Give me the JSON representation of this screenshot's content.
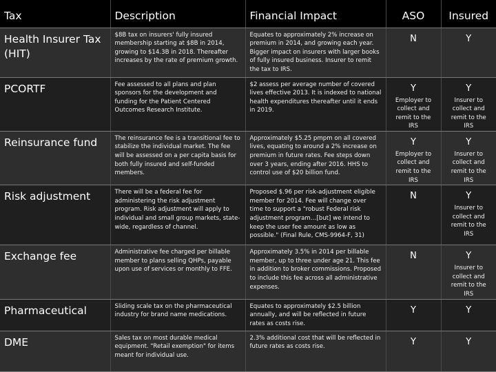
{
  "headers": {
    "tax": "Tax",
    "description": "Description",
    "financial_impact": "Financial Impact",
    "aso": "ASO",
    "insured": "Insured"
  },
  "rows": [
    {
      "tax": "Health Insurer Tax (HIT)",
      "description": "$8B tax on insurers' fully insured membership starting at $8B in 2014, growing to $14.3B in 2018. Thereafter increases by the rate of premium growth.",
      "financial_impact": "Equates to approximately 2% increase on premium in 2014, and growing each year. Bigger impact on insurers with larger books of fully insured business. Insurer to remit the tax to IRS.",
      "aso": "N",
      "aso_note": "",
      "insured": "Y",
      "insured_note": ""
    },
    {
      "tax": "PCORTF",
      "description": "Fee assessed to all plans and plan sponsors for the development and funding for the Patient Centered Outcomes Research Institute.",
      "financial_impact": "$2 assess per average number of covered lives effective 2013. It is indexed to national health expenditures thereafter until it ends in 2019.",
      "aso": "Y",
      "aso_note": "Employer to collect and remit to the IRS",
      "insured": "Y",
      "insured_note": "Insurer to collect and remit to the IRS"
    },
    {
      "tax": "Reinsurance fund",
      "description": "The reinsurance fee is a transitional fee to stabilize the individual market. The fee will be assessed on a per capita basis for both fully insured and self-funded members.",
      "financial_impact": "Approximately $5.25 pmpm on all covered lives, equating to around a 2% increase on premium in future rates. Fee steps down over 3 years, ending after 2016. HHS to control use of $20 billion fund.",
      "aso": "Y",
      "aso_note": "Employer to collect and remit to the IRS",
      "insured": "Y",
      "insured_note": "Insurer to collect and remit to the IRS"
    },
    {
      "tax": "Risk adjustment",
      "description": "There will be a federal fee for administering the risk adjustment program. Risk adjustment will apply to individual and small group markets, state-wide, regardless of channel.",
      "financial_impact": "Proposed $.96 per risk-adjustment eligible member for 2014. Fee will change over time to support a \"robust Federal risk adjustment program…[but] we intend to keep the user fee amount as low as possible.\" (Final Rule, CMS-9964-F, 31)",
      "aso": "N",
      "aso_note": "",
      "insured": "Y",
      "insured_note": "Insurer to collect and remit to the IRS"
    },
    {
      "tax": "Exchange fee",
      "description": "Administrative fee charged per billable member to plans selling QHPs, payable upon use of services or monthly to FFE.",
      "financial_impact": "Approximately 3.5% in 2014 per billable member, up to three under age 21. This fee in addition to broker commissions. Proposed to include this fee across all administrative expenses.",
      "aso": "N",
      "aso_note": "",
      "insured": "Y",
      "insured_note": "Insurer to collect and remit to the IRS"
    },
    {
      "tax": "Pharmaceutical",
      "description": "Sliding scale tax on the pharmaceutical industry for brand name medications.",
      "financial_impact": "Equates to approximately $2.5 billion annually, and will be reflected in future rates as costs rise.",
      "aso": "Y",
      "aso_note": "",
      "insured": "Y",
      "insured_note": ""
    },
    {
      "tax": "DME",
      "description": "Sales tax on most durable medical equipment. \"Retail exemption\" for items meant for individual use.",
      "financial_impact": "2.3% additional cost that will be reflected in future rates as costs rise.",
      "aso": "Y",
      "aso_note": "",
      "insured": "Y",
      "insured_note": ""
    }
  ]
}
